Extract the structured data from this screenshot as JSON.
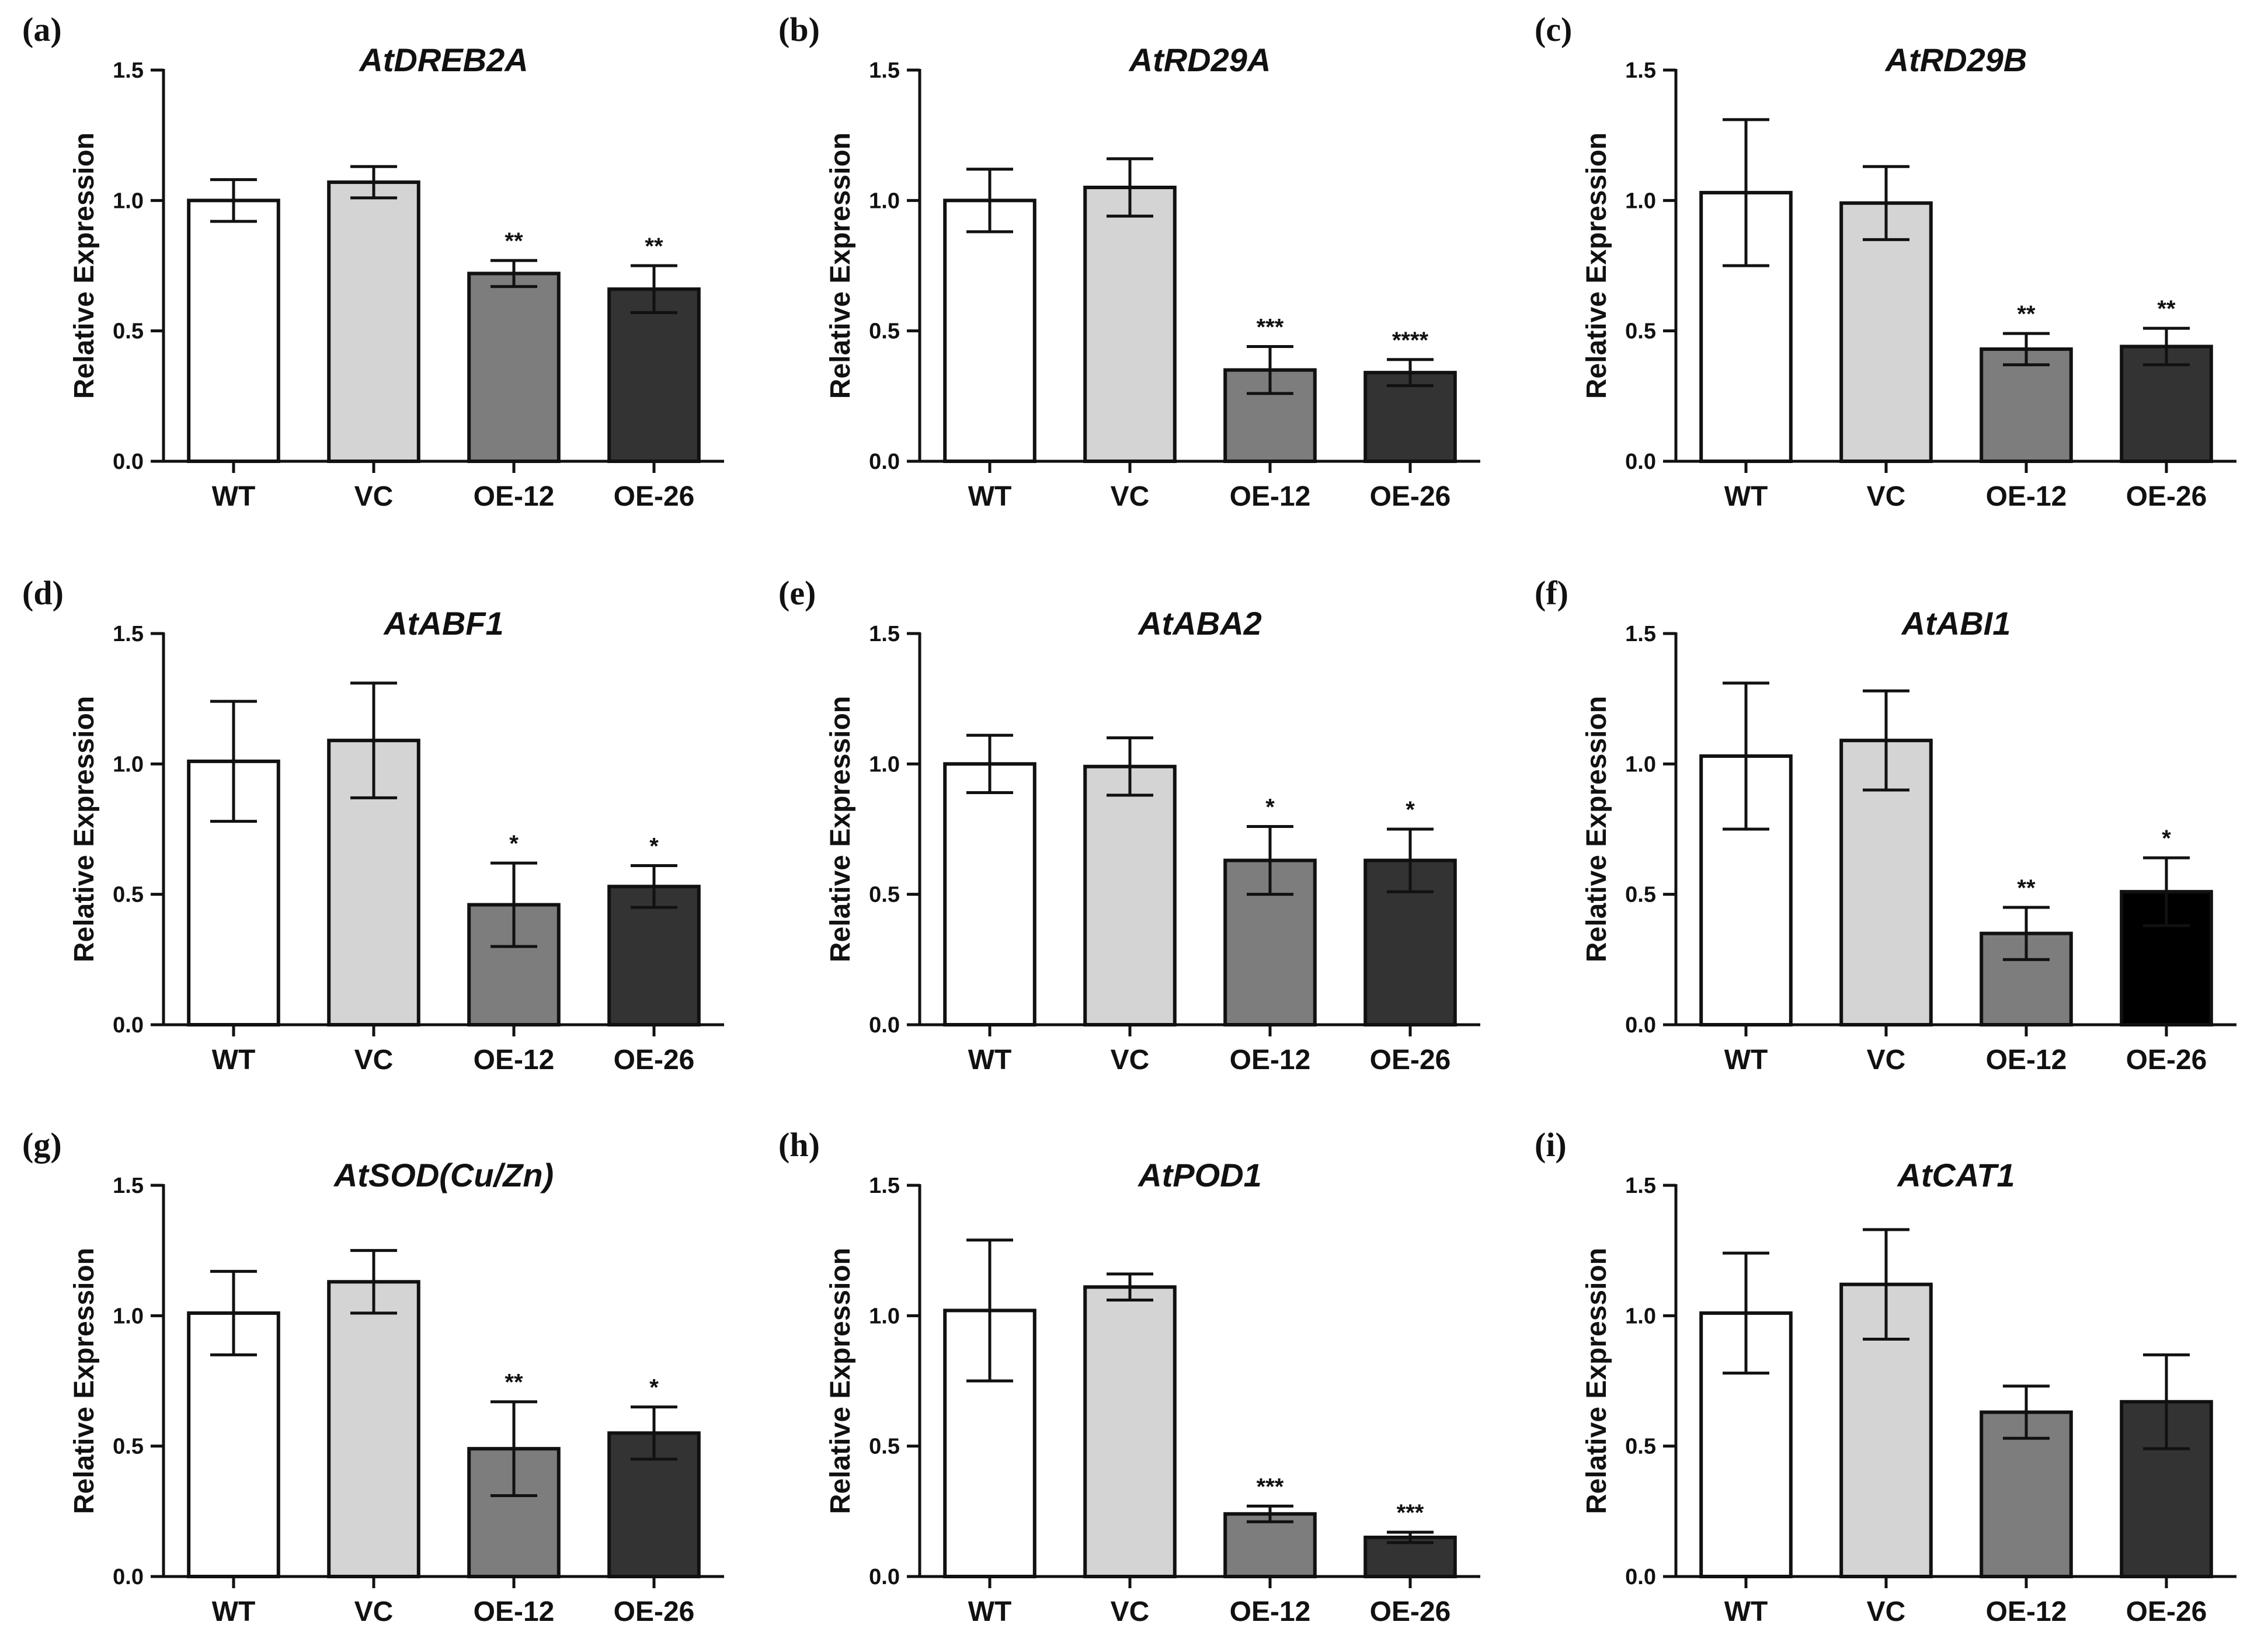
{
  "chart_data": [
    {
      "panel": "(a)",
      "type": "bar",
      "title": "AtDREB2A",
      "ylabel": "Relative Expression",
      "ylim": [
        0,
        1.5
      ],
      "yticks": [
        "0.0",
        "0.5",
        "1.0",
        "1.5"
      ],
      "categories": [
        "WT",
        "VC",
        "OE-12",
        "OE-26"
      ],
      "values": [
        1.0,
        1.07,
        0.72,
        0.66
      ],
      "errors": [
        0.08,
        0.06,
        0.05,
        0.09
      ],
      "significance": [
        "",
        "",
        "**",
        "**"
      ],
      "colors": [
        "#ffffff",
        "#d4d4d4",
        "#7d7d7d",
        "#333333"
      ]
    },
    {
      "panel": "(b)",
      "type": "bar",
      "title": "AtRD29A",
      "ylabel": "Relative Expression",
      "ylim": [
        0,
        1.5
      ],
      "yticks": [
        "0.0",
        "0.5",
        "1.0",
        "1.5"
      ],
      "categories": [
        "WT",
        "VC",
        "OE-12",
        "OE-26"
      ],
      "values": [
        1.0,
        1.05,
        0.35,
        0.34
      ],
      "errors": [
        0.12,
        0.11,
        0.09,
        0.05
      ],
      "significance": [
        "",
        "",
        "***",
        "****"
      ],
      "colors": [
        "#ffffff",
        "#d4d4d4",
        "#7d7d7d",
        "#333333"
      ]
    },
    {
      "panel": "(c)",
      "type": "bar",
      "title": "AtRD29B",
      "ylabel": "Relative Expression",
      "ylim": [
        0,
        1.5
      ],
      "yticks": [
        "0.0",
        "0.5",
        "1.0",
        "1.5"
      ],
      "categories": [
        "WT",
        "VC",
        "OE-12",
        "OE-26"
      ],
      "values": [
        1.03,
        0.99,
        0.43,
        0.44
      ],
      "errors": [
        0.28,
        0.14,
        0.06,
        0.07
      ],
      "significance": [
        "",
        "",
        "**",
        "**"
      ],
      "colors": [
        "#ffffff",
        "#d4d4d4",
        "#7d7d7d",
        "#333333"
      ]
    },
    {
      "panel": "(d)",
      "type": "bar",
      "title": "AtABF1",
      "ylabel": "Relative Expression",
      "ylim": [
        0,
        1.5
      ],
      "yticks": [
        "0.0",
        "0.5",
        "1.0",
        "1.5"
      ],
      "categories": [
        "WT",
        "VC",
        "OE-12",
        "OE-26"
      ],
      "values": [
        1.01,
        1.09,
        0.46,
        0.53
      ],
      "errors": [
        0.23,
        0.22,
        0.16,
        0.08
      ],
      "significance": [
        "",
        "",
        "*",
        "*"
      ],
      "colors": [
        "#ffffff",
        "#d4d4d4",
        "#7d7d7d",
        "#333333"
      ]
    },
    {
      "panel": "(e)",
      "type": "bar",
      "title": "AtABA2",
      "ylabel": "Relative Expression",
      "ylim": [
        0,
        1.5
      ],
      "yticks": [
        "0.0",
        "0.5",
        "1.0",
        "1.5"
      ],
      "categories": [
        "WT",
        "VC",
        "OE-12",
        "OE-26"
      ],
      "values": [
        1.0,
        0.99,
        0.63,
        0.63
      ],
      "errors": [
        0.11,
        0.11,
        0.13,
        0.12
      ],
      "significance": [
        "",
        "",
        "*",
        "*"
      ],
      "colors": [
        "#ffffff",
        "#d4d4d4",
        "#7d7d7d",
        "#333333"
      ]
    },
    {
      "panel": "(f)",
      "type": "bar",
      "title": "AtABI1",
      "ylabel": "Relative Expression",
      "ylim": [
        0,
        1.5
      ],
      "yticks": [
        "0.0",
        "0.5",
        "1.0",
        "1.5"
      ],
      "categories": [
        "WT",
        "VC",
        "OE-12",
        "OE-26"
      ],
      "values": [
        1.03,
        1.09,
        0.35,
        0.51
      ],
      "errors": [
        0.28,
        0.19,
        0.1,
        0.13
      ],
      "significance": [
        "",
        "",
        "**",
        "*"
      ],
      "colors": [
        "#ffffff",
        "#d4d4d4",
        "#7d7d7d",
        "#000000"
      ]
    },
    {
      "panel": "(g)",
      "type": "bar",
      "title": "AtSOD(Cu/Zn)",
      "ylabel": "Relative Expression",
      "ylim": [
        0,
        1.5
      ],
      "yticks": [
        "0.0",
        "0.5",
        "1.0",
        "1.5"
      ],
      "categories": [
        "WT",
        "VC",
        "OE-12",
        "OE-26"
      ],
      "values": [
        1.01,
        1.13,
        0.49,
        0.55
      ],
      "errors": [
        0.16,
        0.12,
        0.18,
        0.1
      ],
      "significance": [
        "",
        "",
        "**",
        "*"
      ],
      "colors": [
        "#ffffff",
        "#d4d4d4",
        "#7d7d7d",
        "#333333"
      ]
    },
    {
      "panel": "(h)",
      "type": "bar",
      "title": "AtPOD1",
      "ylabel": "Relative Expression",
      "ylim": [
        0,
        1.5
      ],
      "yticks": [
        "0.0",
        "0.5",
        "1.0",
        "1.5"
      ],
      "categories": [
        "WT",
        "VC",
        "OE-12",
        "OE-26"
      ],
      "values": [
        1.02,
        1.11,
        0.24,
        0.15
      ],
      "errors": [
        0.27,
        0.05,
        0.03,
        0.02
      ],
      "significance": [
        "",
        "",
        "***",
        "***"
      ],
      "colors": [
        "#ffffff",
        "#d4d4d4",
        "#7d7d7d",
        "#333333"
      ]
    },
    {
      "panel": "(i)",
      "type": "bar",
      "title": "AtCAT1",
      "ylabel": "Relative Expression",
      "ylim": [
        0,
        1.5
      ],
      "yticks": [
        "0.0",
        "0.5",
        "1.0",
        "1.5"
      ],
      "categories": [
        "WT",
        "VC",
        "OE-12",
        "OE-26"
      ],
      "values": [
        1.01,
        1.12,
        0.63,
        0.67
      ],
      "errors": [
        0.23,
        0.21,
        0.1,
        0.18
      ],
      "significance": [
        "",
        "",
        "",
        ""
      ],
      "colors": [
        "#ffffff",
        "#d4d4d4",
        "#7d7d7d",
        "#333333"
      ]
    }
  ]
}
